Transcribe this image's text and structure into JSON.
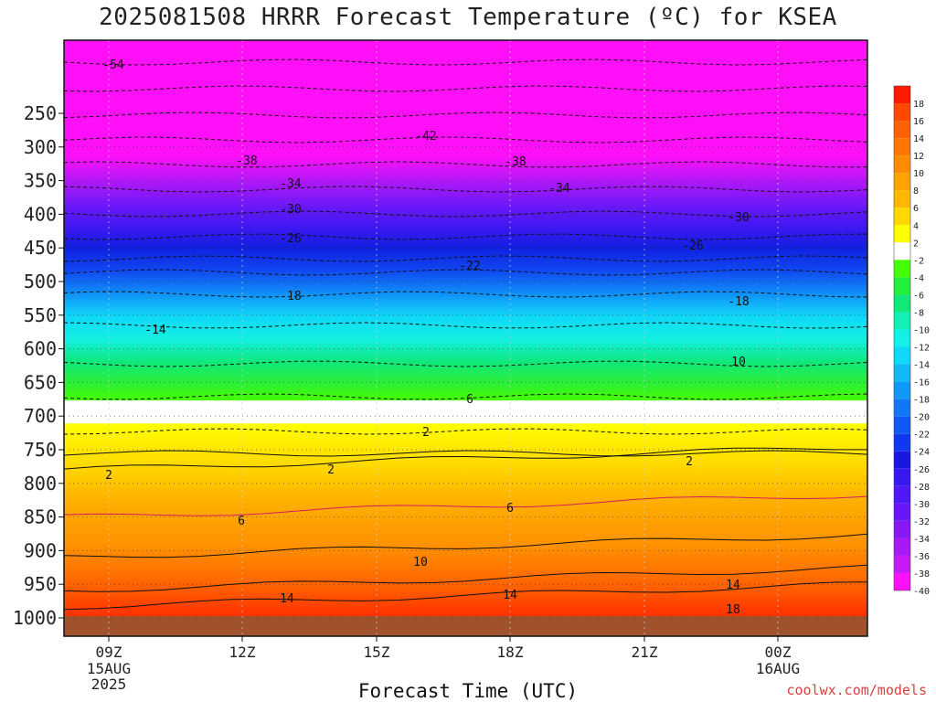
{
  "chart_data": {
    "type": "heatmap",
    "title": "2025081508 HRRR Forecast Temperature (ºC) for KSEA",
    "xlabel": "Forecast Time (UTC)",
    "ylabel": "",
    "y_ticks": [
      250,
      300,
      350,
      400,
      450,
      500,
      550,
      600,
      650,
      700,
      750,
      800,
      850,
      900,
      950,
      1000
    ],
    "x_ticks": [
      {
        "label": "09Z",
        "sub": [
          "15AUG",
          "2025"
        ]
      },
      {
        "label": "12Z",
        "sub": []
      },
      {
        "label": "15Z",
        "sub": []
      },
      {
        "label": "18Z",
        "sub": []
      },
      {
        "label": "21Z",
        "sub": []
      },
      {
        "label": "00Z",
        "sub": [
          "16AUG"
        ]
      }
    ],
    "colorbar_labels": [
      "18",
      "16",
      "14",
      "12",
      "10",
      "8",
      "6",
      "4",
      "2",
      "-2",
      "-4",
      "-6",
      "-8",
      "-10",
      "-12",
      "-14",
      "-16",
      "-18",
      "-20",
      "-22",
      "-24",
      "-26",
      "-28",
      "-30",
      "-32",
      "-34",
      "-36",
      "-38",
      "-40"
    ],
    "colorbar_colors": [
      "#ff1a00",
      "#ff4800",
      "#ff6000",
      "#ff7600",
      "#ff8c00",
      "#ffa200",
      "#ffb800",
      "#ffd800",
      "#ffff00",
      "#ffffff",
      "#44ff00",
      "#1ef03c",
      "#10e878",
      "#12f0b8",
      "#12f0e8",
      "#10d8f8",
      "#10b8f8",
      "#1098f8",
      "#1078f8",
      "#1058f8",
      "#1038f0",
      "#1818e0",
      "#3818f0",
      "#5018f8",
      "#6818f8",
      "#8818f8",
      "#a818f8",
      "#c818f8",
      "#ff10f8"
    ],
    "contours": [
      {
        "label": "-54"
      },
      {
        "label": "-42"
      },
      {
        "label": "-38"
      },
      {
        "label": "-34"
      },
      {
        "label": "-30"
      },
      {
        "label": "-26"
      },
      {
        "label": "-22"
      },
      {
        "label": "-18"
      },
      {
        "label": "-14"
      },
      {
        "label": "10"
      },
      {
        "label": "6"
      },
      {
        "label": "2"
      },
      {
        "label": "14"
      },
      {
        "label": "18"
      }
    ]
  },
  "footer": {
    "credit": "coolwx.com/models"
  }
}
